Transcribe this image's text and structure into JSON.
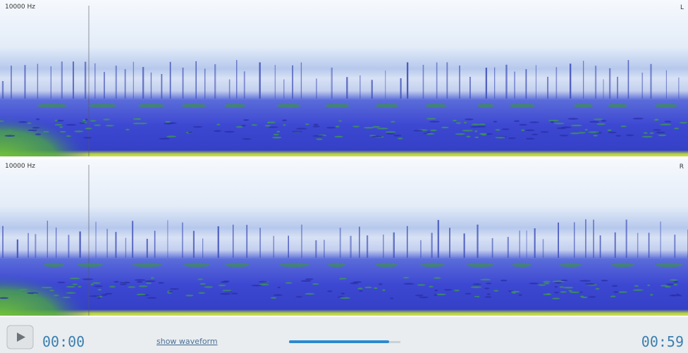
{
  "channels": [
    {
      "freq_label": "10000 Hz",
      "channel_label": "L"
    },
    {
      "freq_label": "10000 Hz",
      "channel_label": "R"
    }
  ],
  "player": {
    "current_time": "00:00",
    "toggle_label": "show waveform",
    "duration": "00:59"
  }
}
